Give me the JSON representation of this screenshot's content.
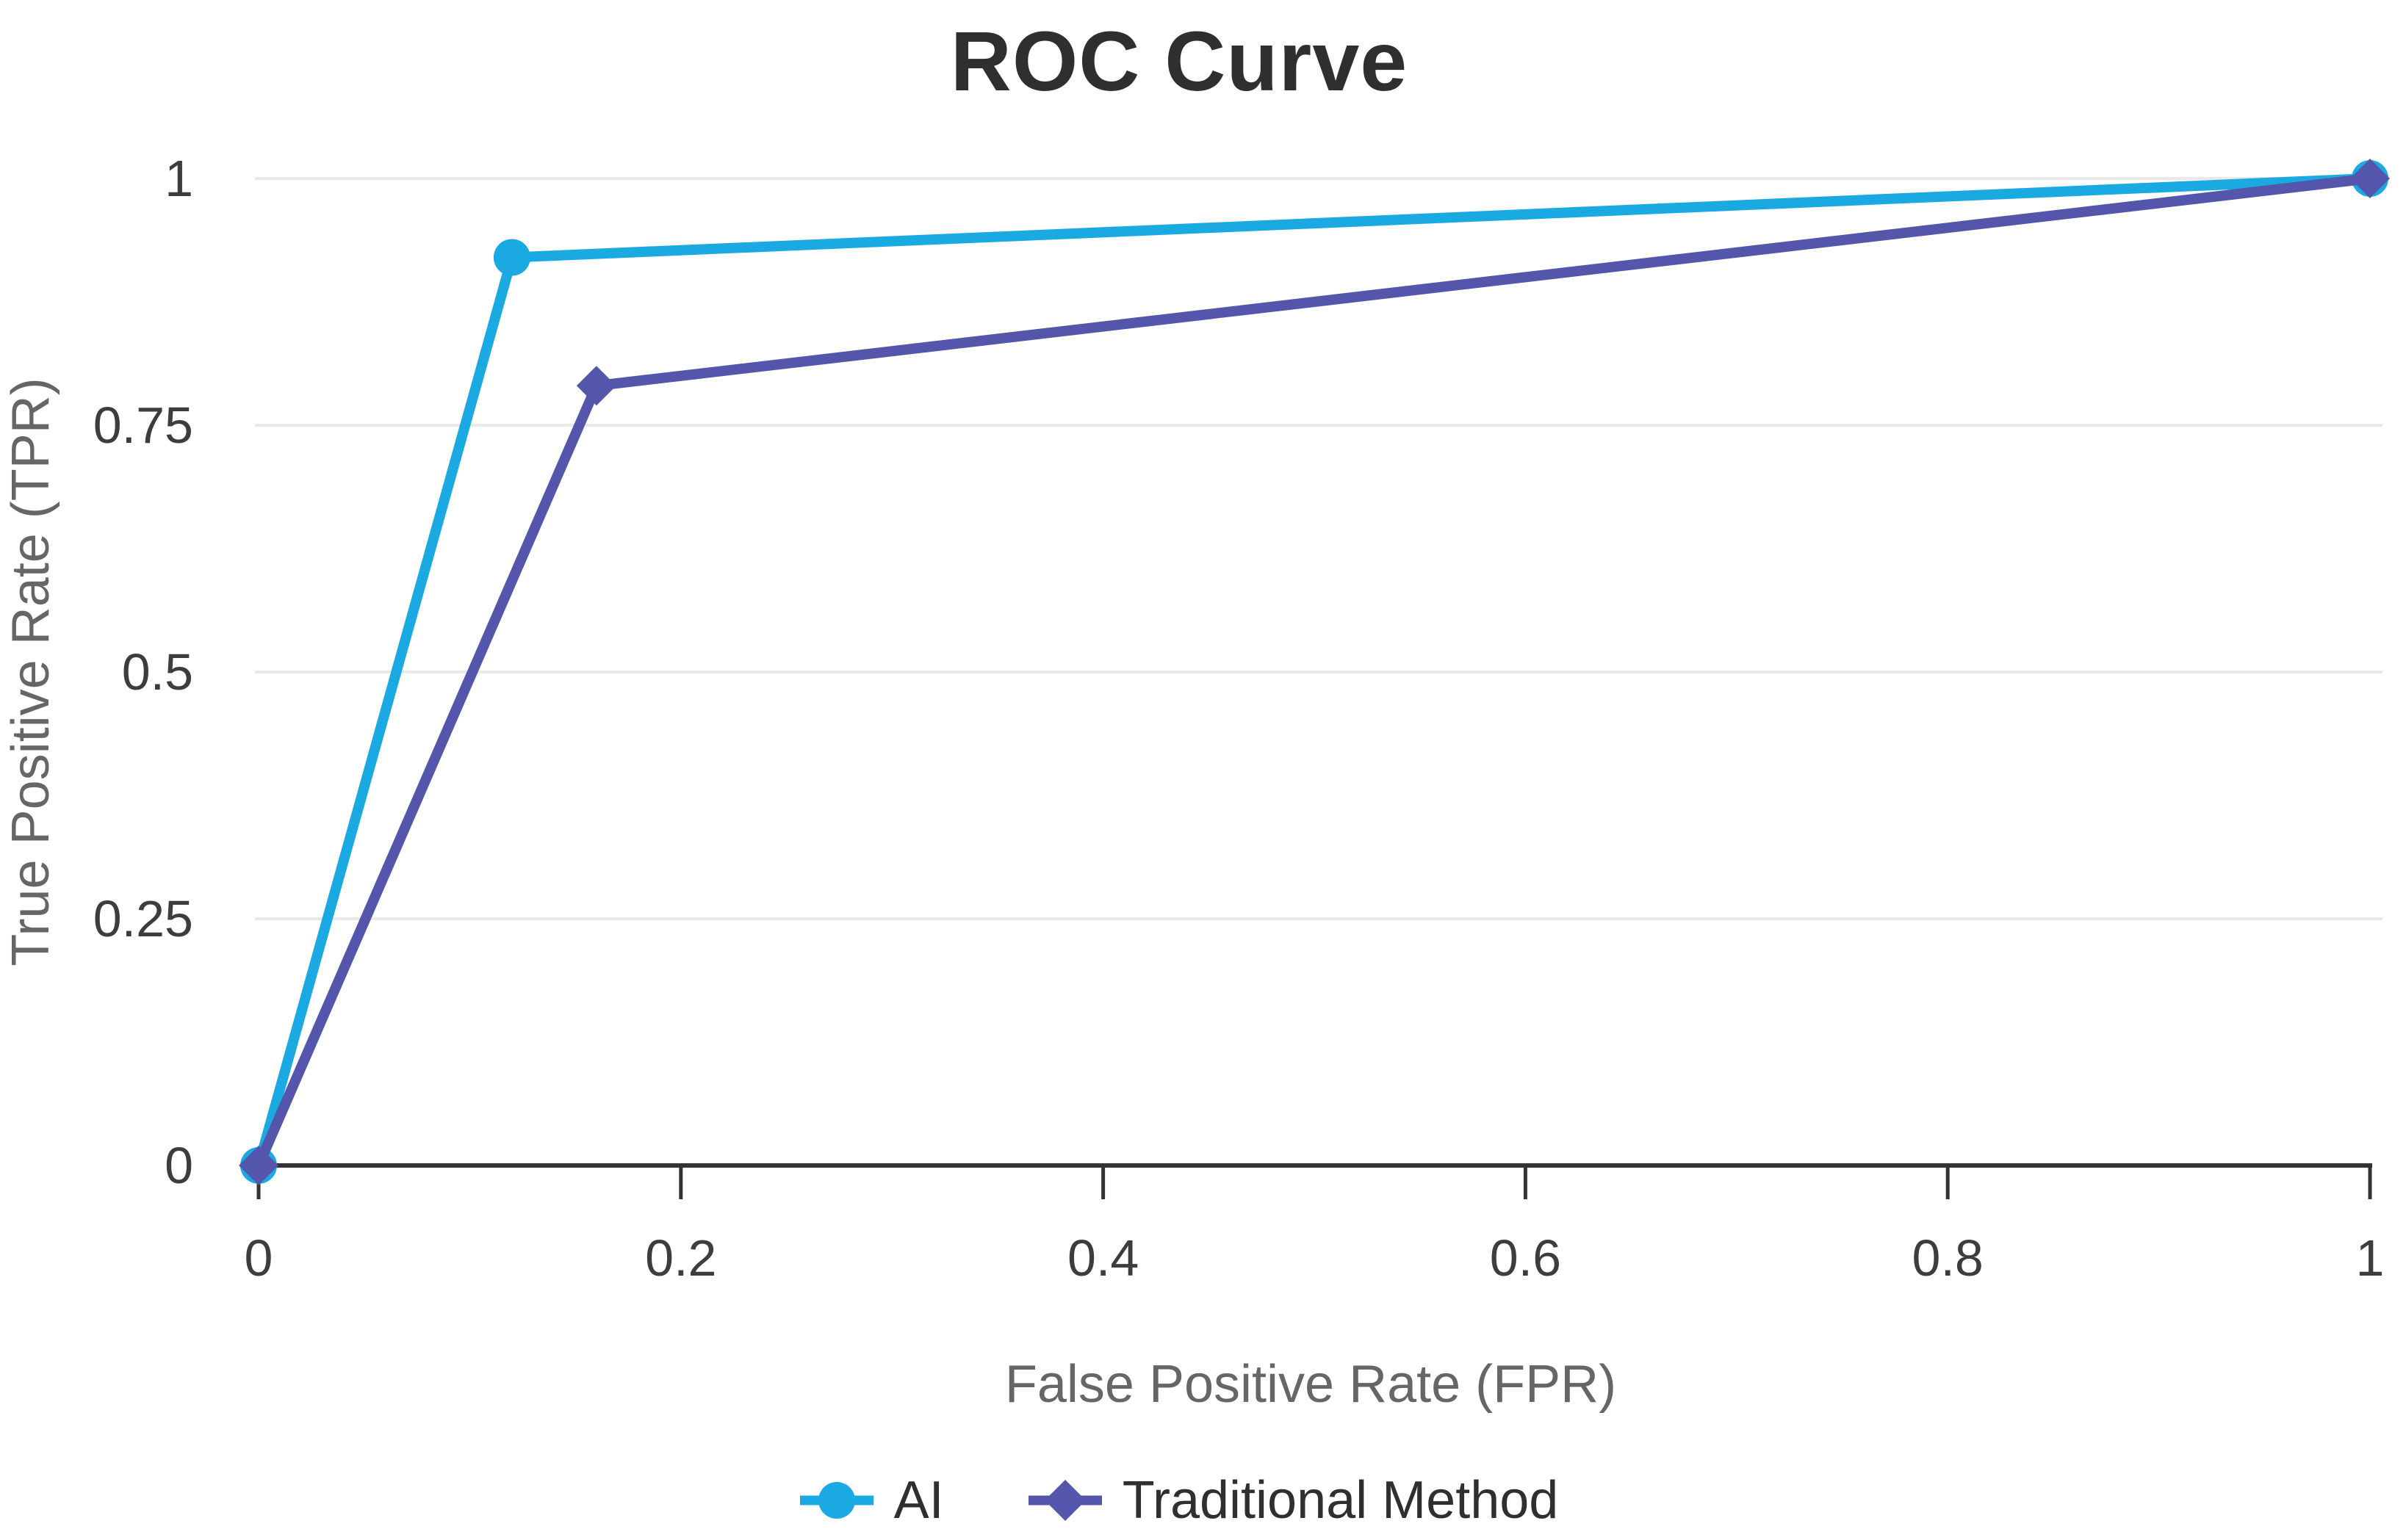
{
  "chart_data": {
    "type": "line",
    "title": "ROC Curve",
    "xlabel": "False Positive Rate (FPR)",
    "ylabel": "True Positive Rate (TPR)",
    "xlim": [
      0,
      1
    ],
    "ylim": [
      0,
      1
    ],
    "grid": "horizontal-only",
    "legend_position": "bottom-center",
    "x_ticks": {
      "values": [
        0,
        0.2,
        0.4,
        0.6,
        0.8,
        1
      ],
      "labels": [
        "0",
        "0.2",
        "0.4",
        "0.6",
        "0.8",
        "1"
      ]
    },
    "y_ticks": {
      "values": [
        0,
        0.25,
        0.5,
        0.75,
        1
      ],
      "labels": [
        "0",
        "0.25",
        "0.5",
        "0.75",
        "1"
      ]
    },
    "series": [
      {
        "name": "AI",
        "color": "#1BA9E2",
        "marker": "circle",
        "points": [
          [
            0,
            0
          ],
          [
            0.12,
            0.92
          ],
          [
            1,
            1
          ]
        ]
      },
      {
        "name": "Traditional Method",
        "color": "#5356AA",
        "marker": "diamond",
        "points": [
          [
            0,
            0
          ],
          [
            0.16,
            0.79
          ],
          [
            1,
            1
          ]
        ]
      }
    ]
  },
  "colors": {
    "title_text": "#2f2f2f",
    "tick_text": "#3d3d3d",
    "axis_title_text": "#666666",
    "legend_text": "#2f2f2f",
    "gridline": "#e9e9e9",
    "axis_line": "#333333",
    "background": "#ffffff"
  }
}
